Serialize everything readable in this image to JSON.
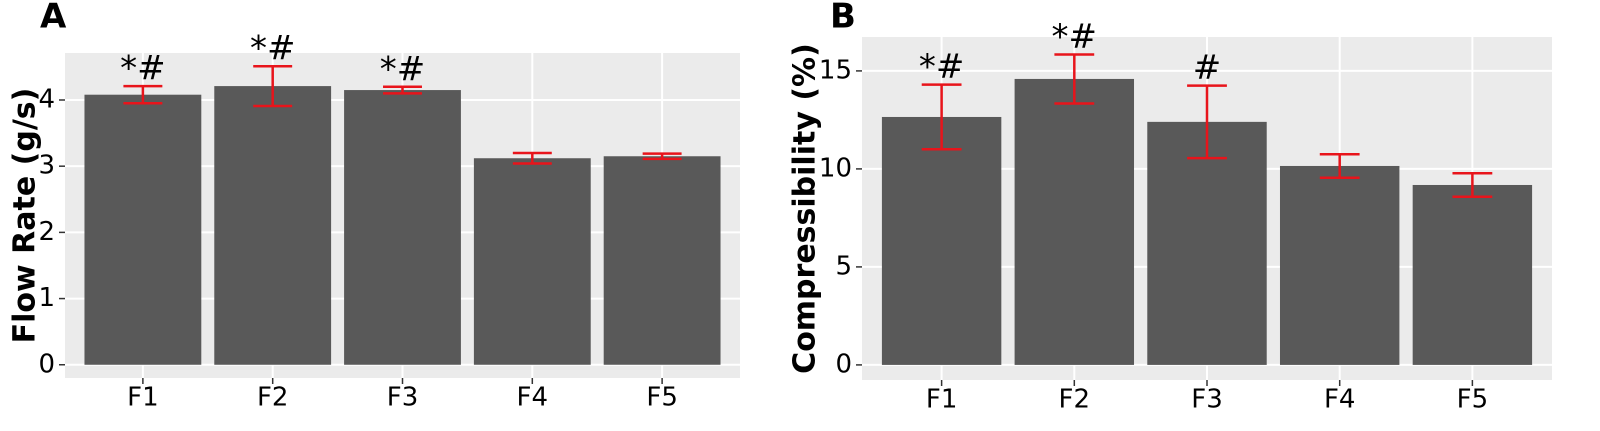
{
  "chart_data": [
    {
      "type": "bar",
      "panel_label": "A",
      "y_label": "Flow Rate (g/s)",
      "categories": [
        "F1",
        "F2",
        "F3",
        "F4",
        "F5"
      ],
      "values": [
        4.08,
        4.21,
        4.15,
        3.12,
        3.15
      ],
      "errors": [
        0.13,
        0.3,
        0.05,
        0.08,
        0.04
      ],
      "annotations": [
        "*#",
        "*#",
        "*#",
        null,
        null
      ],
      "color": "#595959",
      "error_color": "#e8141b",
      "ylim": [
        -0.2,
        4.71
      ],
      "yticks": [
        0,
        1,
        2,
        3,
        4
      ],
      "grid": true
    },
    {
      "type": "bar",
      "panel_label": "B",
      "y_label": "Compressibility (%)",
      "categories": [
        "F1",
        "F2",
        "F3",
        "F4",
        "F5"
      ],
      "values": [
        12.65,
        14.59,
        12.4,
        10.15,
        9.18
      ],
      "errors": [
        1.65,
        1.25,
        1.85,
        0.6,
        0.6
      ],
      "annotations": [
        "*#",
        "*#",
        "#",
        null,
        null
      ],
      "color": "#595959",
      "error_color": "#e8141b",
      "ylim": [
        -0.77,
        16.73
      ],
      "yticks": [
        0,
        5,
        10,
        15
      ],
      "grid": true
    }
  ]
}
